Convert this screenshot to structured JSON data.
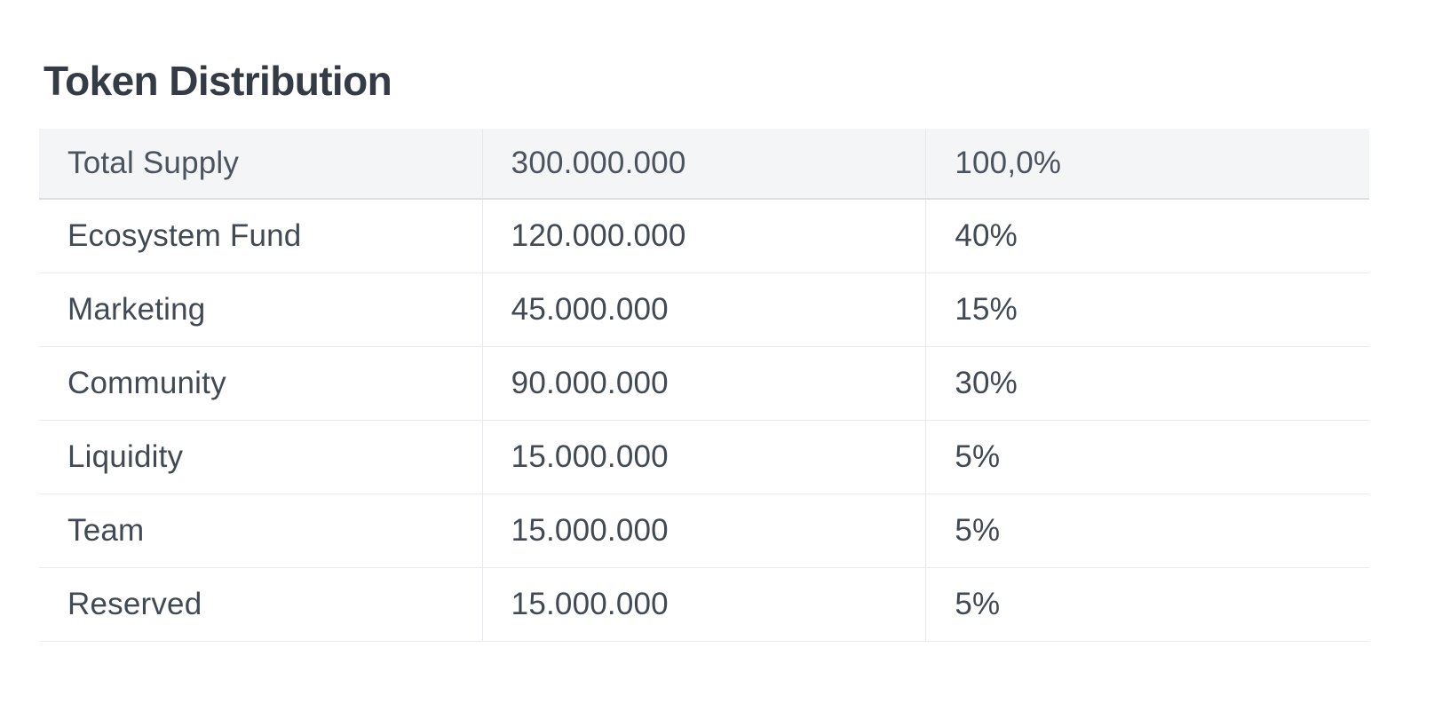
{
  "page": {
    "title": "Token Distribution"
  },
  "table": {
    "header": {
      "label": "Total Supply",
      "amount": "300.000.000",
      "percent": "100,0%"
    },
    "rows": [
      {
        "label": "Ecosystem Fund",
        "amount": "120.000.000",
        "percent": "40%"
      },
      {
        "label": "Marketing",
        "amount": "45.000.000",
        "percent": "15%"
      },
      {
        "label": "Community",
        "amount": "90.000.000",
        "percent": "30%"
      },
      {
        "label": "Liquidity",
        "amount": "15.000.000",
        "percent": "5%"
      },
      {
        "label": "Team",
        "amount": "15.000.000",
        "percent": "5%"
      },
      {
        "label": "Reserved",
        "amount": "15.000.000",
        "percent": "5%"
      }
    ]
  },
  "colors": {
    "background": "#ffffff",
    "header_background": "#f4f5f7",
    "header_bottom_border": "#dcdfe4",
    "row_divider": "#e9ebee",
    "column_divider": "#e5e8ec",
    "title_text": "#343b45",
    "header_text": "#4b545e",
    "body_text": "#414a54"
  }
}
